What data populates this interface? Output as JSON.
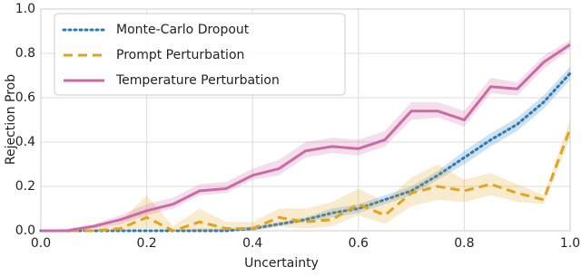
{
  "chart_data": {
    "type": "line",
    "xlabel": "Uncertainty",
    "ylabel": "Rejection Prob",
    "x": [
      0,
      0.05,
      0.1,
      0.15,
      0.2,
      0.25,
      0.3,
      0.35,
      0.4,
      0.45,
      0.5,
      0.55,
      0.6,
      0.65,
      0.7,
      0.75,
      0.8,
      0.85,
      0.9,
      0.95,
      1.0
    ],
    "xlim": [
      0,
      1
    ],
    "ylim": [
      0,
      1
    ],
    "xticks": [
      {
        "value": 0,
        "label": "0.0"
      },
      {
        "value": 0.2,
        "label": "0.2"
      },
      {
        "value": 0.4,
        "label": "0.4"
      },
      {
        "value": 0.6,
        "label": "0.6"
      },
      {
        "value": 0.8,
        "label": "0.8"
      },
      {
        "value": 1,
        "label": "1.0"
      }
    ],
    "yticks": [
      {
        "value": 0,
        "label": "0.0"
      },
      {
        "value": 0.2,
        "label": "0.2"
      },
      {
        "value": 0.4,
        "label": "0.4"
      },
      {
        "value": 0.6,
        "label": "0.6"
      },
      {
        "value": 0.8,
        "label": "0.8"
      },
      {
        "value": 1,
        "label": "1.0"
      }
    ],
    "grid": true,
    "legend": "upper left",
    "series": [
      {
        "name": "Monte-Carlo Dropout",
        "color": "#2a7ab9",
        "style": "dotted",
        "values": [
          0,
          0,
          0,
          0,
          0,
          0,
          0,
          0,
          0.01,
          0.03,
          0.05,
          0.08,
          0.1,
          0.14,
          0.18,
          0.25,
          0.33,
          0.41,
          0.48,
          0.58,
          0.71
        ],
        "lower": [
          0,
          0,
          0,
          0,
          0,
          0,
          0,
          0,
          0,
          0.02,
          0.04,
          0.06,
          0.08,
          0.12,
          0.16,
          0.23,
          0.3,
          0.38,
          0.45,
          0.55,
          0.68
        ],
        "upper": [
          0,
          0,
          0,
          0,
          0,
          0,
          0.01,
          0.01,
          0.02,
          0.04,
          0.06,
          0.1,
          0.12,
          0.16,
          0.2,
          0.27,
          0.36,
          0.44,
          0.51,
          0.61,
          0.74
        ]
      },
      {
        "name": "Prompt Perturbation",
        "color": "#e0a420",
        "style": "dashed",
        "values": [
          0,
          0,
          0,
          0.01,
          0.06,
          0,
          0.04,
          0.01,
          0.01,
          0.06,
          0.04,
          0.05,
          0.12,
          0.07,
          0.17,
          0.2,
          0.18,
          0.21,
          0.17,
          0.14,
          0.46
        ],
        "lower": [
          0,
          0,
          0,
          0,
          0.01,
          0,
          0,
          0,
          0,
          0.02,
          0.01,
          0.02,
          0.07,
          0.03,
          0.11,
          0.14,
          0.13,
          0.16,
          0.13,
          0.12,
          0.42
        ],
        "upper": [
          0,
          0,
          0.01,
          0.04,
          0.16,
          0.02,
          0.1,
          0.04,
          0.04,
          0.1,
          0.1,
          0.13,
          0.19,
          0.13,
          0.24,
          0.3,
          0.23,
          0.26,
          0.21,
          0.16,
          0.5
        ]
      },
      {
        "name": "Temperature Perturbation",
        "color": "#cc6aa6",
        "style": "solid",
        "values": [
          0,
          0,
          0.02,
          0.05,
          0.09,
          0.12,
          0.18,
          0.19,
          0.25,
          0.28,
          0.36,
          0.38,
          0.37,
          0.41,
          0.54,
          0.54,
          0.5,
          0.65,
          0.64,
          0.76,
          0.84
        ],
        "lower": [
          0,
          0,
          0.01,
          0.03,
          0.07,
          0.1,
          0.16,
          0.17,
          0.23,
          0.25,
          0.33,
          0.35,
          0.34,
          0.38,
          0.5,
          0.51,
          0.47,
          0.62,
          0.61,
          0.73,
          0.82
        ],
        "upper": [
          0,
          0.01,
          0.03,
          0.07,
          0.12,
          0.15,
          0.21,
          0.22,
          0.28,
          0.32,
          0.4,
          0.42,
          0.41,
          0.45,
          0.58,
          0.58,
          0.54,
          0.69,
          0.67,
          0.79,
          0.86
        ]
      }
    ]
  }
}
